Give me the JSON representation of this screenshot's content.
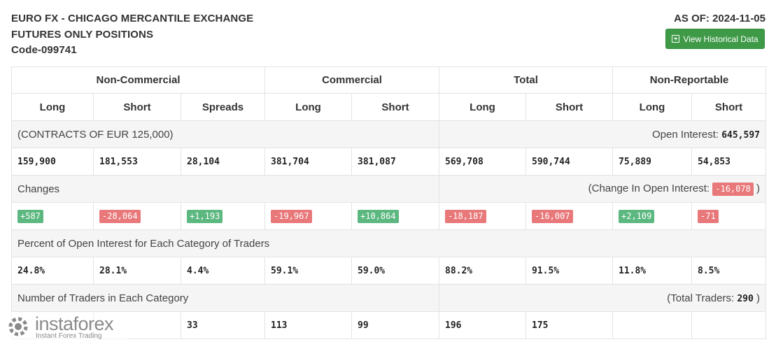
{
  "header": {
    "title_line1": "EURO FX - CHICAGO MERCANTILE EXCHANGE",
    "title_line2": "FUTURES ONLY POSITIONS",
    "code": "Code-099741",
    "as_of": "AS OF: 2024-11-05",
    "history_button": "View Historical Data",
    "history_icon": "calendar-plus-icon"
  },
  "table": {
    "groups": [
      "Non-Commercial",
      "Commercial",
      "Total",
      "Non-Reportable"
    ],
    "columns": [
      "Long",
      "Short",
      "Spreads",
      "Long",
      "Short",
      "Long",
      "Short",
      "Long",
      "Short"
    ],
    "contracts_label": "(CONTRACTS OF EUR 125,000)",
    "open_interest_label": "Open Interest:",
    "open_interest_value": "645,597",
    "positions": [
      "159,900",
      "181,553",
      "28,104",
      "381,704",
      "381,087",
      "569,708",
      "590,744",
      "75,889",
      "54,853"
    ],
    "changes_label": "Changes",
    "change_oi_label": "(Change In Open Interest:",
    "change_oi_value": "-16,078",
    "change_oi_close": ")",
    "changes": [
      "+587",
      "-28,064",
      "+1,193",
      "-19,967",
      "+10,864",
      "-18,187",
      "-16,007",
      "+2,109",
      "-71"
    ],
    "percent_label": "Percent of Open Interest for Each Category of Traders",
    "percents": [
      "24.8%",
      "28.1%",
      "4.4%",
      "59.1%",
      "59.0%",
      "88.2%",
      "91.5%",
      "11.8%",
      "8.5%"
    ],
    "traders_label": "Number of Traders in Each Category",
    "total_traders_label": "(Total Traders:",
    "total_traders_value": "290",
    "total_traders_close": ")",
    "traders": [
      "",
      "",
      "33",
      "113",
      "99",
      "196",
      "175",
      "",
      ""
    ]
  },
  "watermark": {
    "name": "instaforex",
    "tagline": "Instant Forex Trading"
  },
  "colors": {
    "positive": "#5cb880",
    "negative": "#e8787a",
    "button": "#3f9a48"
  }
}
